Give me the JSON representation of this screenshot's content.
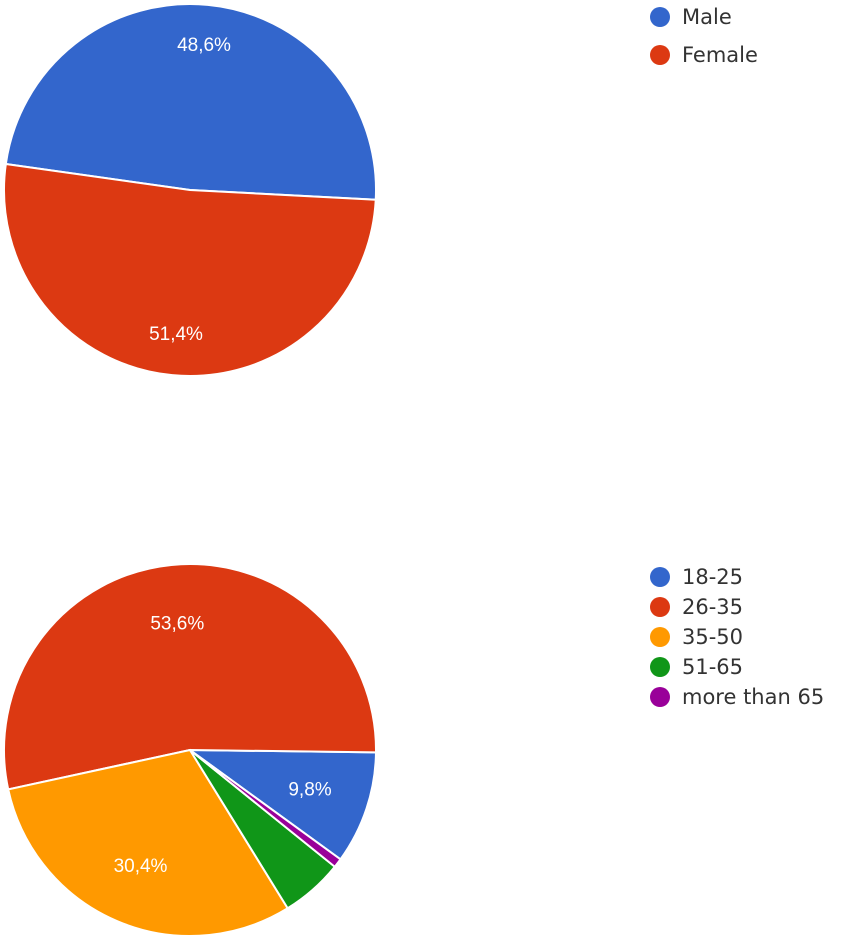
{
  "chart_data": [
    {
      "type": "pie",
      "categories": [
        "Male",
        "Female"
      ],
      "values": [
        48.6,
        51.4
      ],
      "data_labels": [
        "48,6%",
        "51,4%"
      ],
      "colors": [
        "#3366cc",
        "#dc3912"
      ],
      "legend": {
        "placement": "right",
        "entries": [
          "Male",
          "Female"
        ]
      }
    },
    {
      "type": "pie",
      "categories": [
        "18-25",
        "26-35",
        "35-50",
        "51-65",
        "more than 65"
      ],
      "values": [
        9.8,
        53.6,
        30.4,
        5.4,
        0.8
      ],
      "data_labels": [
        "9,8%",
        "53,6%",
        "30,4%",
        "",
        ""
      ],
      "colors": [
        "#3366cc",
        "#dc3912",
        "#ff9900",
        "#109618",
        "#990099"
      ],
      "legend": {
        "placement": "right",
        "entries": [
          "18-25",
          "26-35",
          "35-50",
          "51-65",
          "more than 65"
        ]
      }
    }
  ]
}
